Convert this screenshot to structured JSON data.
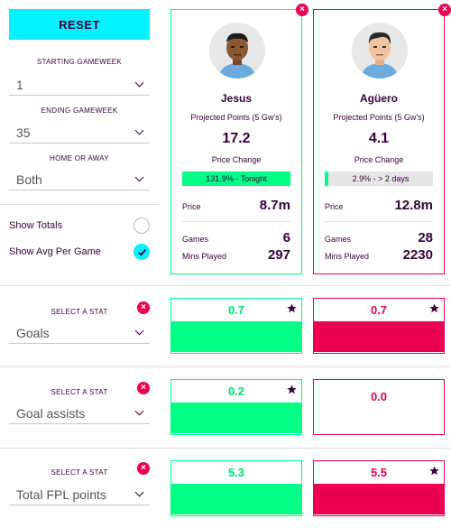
{
  "controls": {
    "reset_label": "RESET",
    "starting_gameweek_label": "STARTING GAMEWEEK",
    "starting_gameweek_value": "1",
    "ending_gameweek_label": "ENDING GAMEWEEK",
    "ending_gameweek_value": "35",
    "home_away_label": "HOME OR AWAY",
    "home_away_value": "Both",
    "show_totals_label": "Show Totals",
    "show_avg_label": "Show Avg Per Game"
  },
  "players": [
    {
      "name": "Jesus",
      "projected_label": "Projected Points (5 Gw's)",
      "projected_value": "17.2",
      "price_change_label": "Price Change",
      "price_change_value": "131.9% - Tonight",
      "price_label": "Price",
      "price_value": "8.7m",
      "games_label": "Games",
      "games_value": "6",
      "mins_label": "Mins Played",
      "mins_value": "297"
    },
    {
      "name": "Agüero",
      "projected_label": "Projected Points (5 Gw's)",
      "projected_value": "4.1",
      "price_change_label": "Price Change",
      "price_change_value": "2.9% - > 2 days",
      "price_label": "Price",
      "price_value": "12.8m",
      "games_label": "Games",
      "games_value": "28",
      "mins_label": "Mins Played",
      "mins_value": "2230"
    }
  ],
  "stats": [
    {
      "label": "SELECT A STAT",
      "stat": "Goals",
      "left": "0.7",
      "right": "0.7"
    },
    {
      "label": "SELECT A STAT",
      "stat": "Goal assists",
      "left": "0.2",
      "right": "0.0"
    },
    {
      "label": "SELECT A STAT",
      "stat": "Total FPL points",
      "left": "5.3",
      "right": "5.5"
    }
  ],
  "colors": {
    "accent_cyan": "#05f0ff",
    "green": "#00ff87",
    "pink": "#e90052",
    "navy": "#37003c"
  }
}
